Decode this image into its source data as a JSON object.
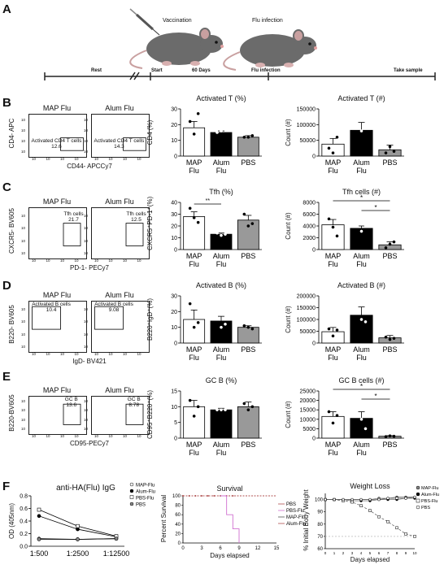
{
  "panels": {
    "A": "A",
    "B": "B",
    "C": "C",
    "D": "D",
    "E": "E",
    "F": "F"
  },
  "timeline": {
    "vaccination": "Vaccination",
    "flu_infection_top": "Flu infection",
    "rest": "Rest",
    "start": "Start",
    "days60": "60 Days",
    "flu_infection": "Flu infection",
    "take_sample": "Take sample"
  },
  "rowB": {
    "flow_titles": [
      "MAP Flu",
      "Alum Flu"
    ],
    "ylabel": "CD4- APC",
    "xlabel": "CD44- APCCy7",
    "gate_name": "Activated CD4 T cells",
    "gate_vals": [
      "12.6",
      "14.3"
    ],
    "pct_chart": {
      "title": "Activated T (%)",
      "ylabel": "CD4 (%)",
      "yticks": [
        "0",
        "10",
        "20",
        "30"
      ],
      "ylim": [
        0,
        30
      ],
      "categories": [
        "MAP Flu",
        "Alum Flu",
        "PBS"
      ],
      "values": [
        18,
        15,
        12
      ],
      "errors": [
        4,
        1,
        1
      ],
      "points": [
        [
          22,
          14,
          27
        ],
        [
          15,
          16,
          17
        ],
        [
          12,
          12,
          13
        ]
      ]
    },
    "count_chart": {
      "title": "Activated T (#)",
      "ylabel": "Count (#)",
      "yticks": [
        "0",
        "50000",
        "100000",
        "150000"
      ],
      "ylim": [
        0,
        150000
      ],
      "categories": [
        "MAP Flu",
        "Alum Flu",
        "PBS"
      ],
      "values": [
        38000,
        82000,
        20000
      ],
      "errors": [
        18000,
        25000,
        15000
      ],
      "points": [
        [
          25000,
          10000,
          60000
        ],
        [
          95000,
          80000,
          120000
        ],
        [
          10000,
          30000,
          15000
        ]
      ]
    }
  },
  "rowC": {
    "flow_titles": [
      "MAP Flu",
      "Alum Flu"
    ],
    "ylabel": "CXCR5- BV605",
    "xlabel": "PD-1- PECy7",
    "gate_name": "Tfh cells",
    "gate_vals": [
      "21.7",
      "12.5"
    ],
    "pct_chart": {
      "title": "Tfh (%)",
      "ylabel": "CXCR5⁺PD-1⁺(%)",
      "yticks": [
        "0",
        "10",
        "20",
        "30",
        "40"
      ],
      "ylim": [
        0,
        40
      ],
      "categories": [
        "MAP Flu",
        "Alum Flu",
        "PBS"
      ],
      "values": [
        28,
        13,
        25
      ],
      "errors": [
        4,
        1,
        4
      ],
      "sig": "**",
      "points": [
        [
          35,
          27,
          23
        ],
        [
          14,
          12,
          13
        ],
        [
          30,
          20,
          22
        ]
      ]
    },
    "count_chart": {
      "title": "Tfh cells (#)",
      "ylabel": "Count (#)",
      "yticks": [
        "0",
        "2000",
        "4000",
        "6000",
        "8000"
      ],
      "ylim": [
        0,
        8000
      ],
      "categories": [
        "MAP Flu",
        "Alum Flu",
        "PBS"
      ],
      "values": [
        4200,
        3600,
        800
      ],
      "errors": [
        900,
        400,
        500
      ],
      "sig": [
        "*",
        "*"
      ],
      "points": [
        [
          5200,
          3800,
          2300
        ],
        [
          3900,
          3100,
          4100
        ],
        [
          300,
          900,
          1300
        ]
      ]
    }
  },
  "rowD": {
    "flow_titles": [
      "MAP Flu",
      "Alum Flu"
    ],
    "ylabel": "B220- BV605",
    "xlabel": "IgD- BV421",
    "gate_name": "Activated B cells",
    "gate_vals": [
      "10.4",
      "9.08"
    ],
    "pct_chart": {
      "title": "Activated B (%)",
      "ylabel": "B220⁺IgD⁺(%)",
      "yticks": [
        "0",
        "10",
        "20",
        "30"
      ],
      "ylim": [
        0,
        30
      ],
      "categories": [
        "MAP Flu",
        "Alum Flu",
        "PBS"
      ],
      "values": [
        15,
        14,
        10
      ],
      "errors": [
        6,
        3,
        1
      ],
      "points": [
        [
          25,
          10,
          13
        ],
        [
          16,
          10,
          12
        ],
        [
          11,
          10,
          9
        ]
      ]
    },
    "count_chart": {
      "title": "Activated B (#)",
      "ylabel": "Count (#)",
      "yticks": [
        "0",
        "50000",
        "100000",
        "150000",
        "200000"
      ],
      "ylim": [
        0,
        200000
      ],
      "categories": [
        "MAP Flu",
        "Alum Flu",
        "PBS"
      ],
      "values": [
        48000,
        118000,
        22000
      ],
      "errors": [
        18000,
        35000,
        10000
      ],
      "points": [
        [
          60000,
          30000,
          55000
        ],
        [
          160000,
          100000,
          90000
        ],
        [
          25000,
          15000,
          20000
        ]
      ]
    }
  },
  "rowE": {
    "flow_titles": [
      "MAP Flu",
      "Alum Flu"
    ],
    "ylabel": "B220-BV605",
    "xlabel": "CD95-PECy7",
    "gate_name": "GC B",
    "gate_vals": [
      "13.6",
      "8.78"
    ],
    "pct_chart": {
      "title": "GC B (%)",
      "ylabel": "CD95⁺B220⁺(%)",
      "yticks": [
        "0",
        "5",
        "10",
        "15"
      ],
      "ylim": [
        0,
        15
      ],
      "categories": [
        "MAP Flu",
        "Alum Flu",
        "PBS"
      ],
      "values": [
        10,
        9,
        10
      ],
      "errors": [
        2,
        0.5,
        1.5
      ],
      "points": [
        [
          12,
          7,
          10
        ],
        [
          9,
          9,
          9
        ],
        [
          11,
          9,
          10
        ]
      ]
    },
    "count_chart": {
      "title": "GC B cells (#)",
      "ylabel": "Count (#)",
      "yticks": [
        "0",
        "5000",
        "10000",
        "15000",
        "20000",
        "25000"
      ],
      "ylim": [
        0,
        25000
      ],
      "categories": [
        "MAP Flu",
        "Alum Flu",
        "PBS"
      ],
      "values": [
        11500,
        10500,
        1000
      ],
      "errors": [
        2500,
        3500,
        300
      ],
      "sig": [
        "*",
        "*"
      ],
      "points": [
        [
          14000,
          8000,
          12000
        ],
        [
          15000,
          10000,
          5000
        ],
        [
          800,
          1200,
          1000
        ]
      ]
    }
  },
  "rowF": {
    "igg": {
      "title": "anti-HA(Flu) IgG",
      "ylabel": "OD (405nm)",
      "yticks": [
        "0.0",
        "0.2",
        "0.4",
        "0.6",
        "0.8"
      ],
      "ylim": [
        0,
        0.8
      ],
      "categories": [
        "1:500",
        "1:2500",
        "1:12500"
      ],
      "series": [
        {
          "name": "MAP-Flu",
          "values": [
            0.12,
            0.11,
            0.12
          ]
        },
        {
          "name": "Alum-Flu",
          "values": [
            0.48,
            0.27,
            0.15
          ]
        },
        {
          "name": "PBS-Flu",
          "values": [
            0.58,
            0.32,
            0.16
          ]
        },
        {
          "name": "PBS",
          "values": [
            0.11,
            0.11,
            0.12
          ]
        }
      ]
    },
    "survival": {
      "title": "Survival",
      "ylabel": "Percent Survival",
      "xlabel": "Days elapsed",
      "yticks": [
        "0",
        "20",
        "40",
        "60",
        "80",
        "100"
      ],
      "xticks": [
        "0",
        "3",
        "6",
        "9",
        "12",
        "15"
      ],
      "legend": [
        "PBS",
        "PBS-Flu",
        "MAP-Flu",
        "Alum-Flu"
      ]
    },
    "weight": {
      "title": "Weight Loss",
      "ylabel": "% Initial Body Weight",
      "xlabel": "Days elapsed",
      "yticks": [
        "60",
        "70",
        "80",
        "90",
        "100"
      ],
      "xticks": [
        "0",
        "1",
        "2",
        "3",
        "4",
        "5",
        "6",
        "7",
        "8",
        "9",
        "10"
      ],
      "legend": [
        "MAP-Flu",
        "Alum-Flu",
        "PBS-Flu",
        "PBS"
      ],
      "series": [
        {
          "name": "MAP-Flu",
          "values": [
            100,
            100,
            100,
            100,
            100,
            100,
            101,
            101,
            102,
            102,
            102
          ]
        },
        {
          "name": "Alum-Flu",
          "values": [
            100,
            100,
            100,
            99,
            99,
            99,
            100,
            100,
            100,
            101,
            101
          ]
        },
        {
          "name": "PBS-Flu",
          "values": [
            100,
            100,
            99,
            98,
            95,
            91,
            86,
            82,
            77,
            72,
            70
          ]
        },
        {
          "name": "PBS",
          "values": [
            100,
            100,
            100,
            100,
            100,
            100,
            100,
            101,
            101,
            101,
            102
          ]
        }
      ]
    }
  }
}
